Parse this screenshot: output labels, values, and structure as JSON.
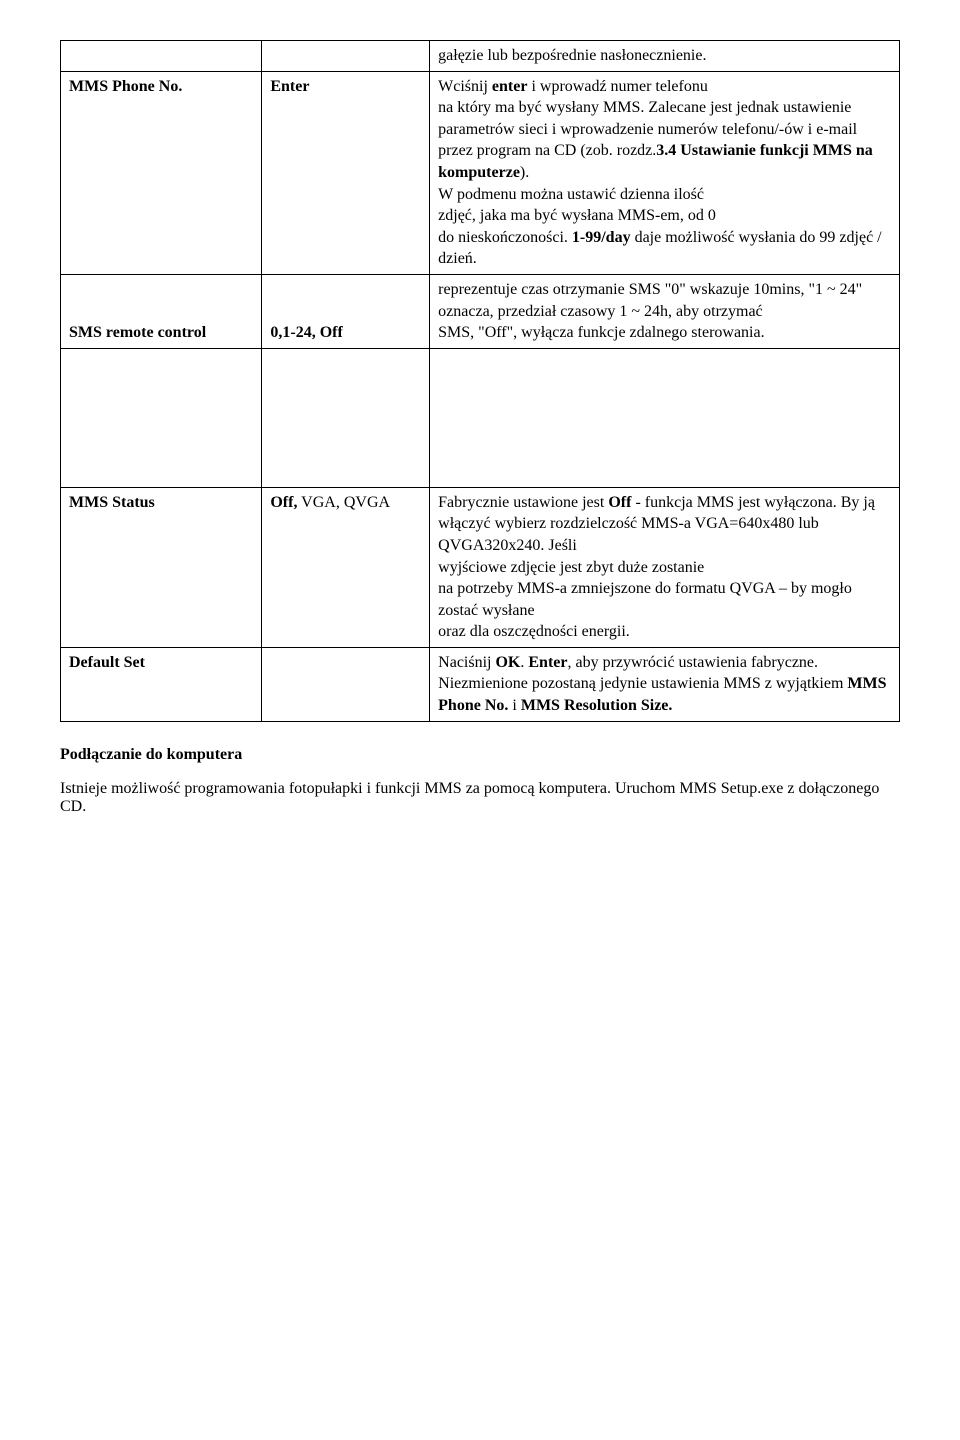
{
  "rows": {
    "r0": {
      "c3": "gałęzie lub bezpośrednie nasłonecznienie."
    },
    "r1": {
      "c1": "MMS Phone No.",
      "c2": "Enter",
      "c3_p1_a": "Wciśnij ",
      "c3_p1_b": "enter",
      "c3_p1_c": " i wprowadź numer telefonu",
      "c3_p2": "na który ma być wysłany MMS. Zalecane jest jednak ustawienie parametrów sieci i wprowadzenie numerów telefonu/-ów i e-mail przez program na CD (zob. rozdz.",
      "c3_p2_b": "3.4 Ustawianie funkcji MMS na komputerze",
      "c3_p2_c": ").",
      "c3_p3": "W podmenu można ustawić dzienna ilość",
      "c3_p4": "zdjęć, jaka ma być wysłana MMS-em, od 0",
      "c3_p5_a": "do nieskończoności. ",
      "c3_p5_b": "1-99/day",
      "c3_p5_c": " daje możliwość wysłania do 99 zdjęć / dzień."
    },
    "r2": {
      "c1": "SMS remote control",
      "c2": "0,1-24, Off",
      "c3": "reprezentuje czas otrzymanie SMS \"0\" wskazuje 10mins, \"1 ~ 24\" oznacza, przedział czasowy 1 ~ 24h, aby otrzymać",
      "c3b": "SMS, \"Off\", wyłącza funkcje zdalnego sterowania."
    },
    "r3": {
      "c1": "MMS Status",
      "c2_a": "Off,",
      "c2_b": " VGA, QVGA",
      "c3_a": "Fabrycznie ustawione jest ",
      "c3_b": "Off ",
      "c3_c": "- funkcja MMS jest wyłączona. By ją włączyć wybierz rozdzielczość MMS-a VGA=640x480 lub QVGA320x240. Jeśli",
      "c3_d": "wyjściowe zdjęcie jest zbyt duże zostanie",
      "c3_e": "na potrzeby MMS-a zmniejszone do formatu QVGA – by mogło zostać wysłane",
      "c3_f": "oraz dla oszczędności energii."
    },
    "r4": {
      "c1": "Default Set",
      "c3_a": "Naciśnij ",
      "c3_b": "OK",
      "c3_c": ". ",
      "c3_d": "Enter",
      "c3_e": ", aby przywrócić ustawienia fabryczne. Niezmienione pozostaną jedynie ustawienia MMS z wyjątkiem ",
      "c3_f": "MMS Phone No.",
      "c3_g": " i ",
      "c3_h": "MMS Resolution Size."
    }
  },
  "section_title": "Podłączanie do komputera",
  "para1": "Istnieje możliwość programowania fotopułapki i funkcji MMS za pomocą komputera. Uruchom MMS Setup.exe z dołączonego CD."
}
